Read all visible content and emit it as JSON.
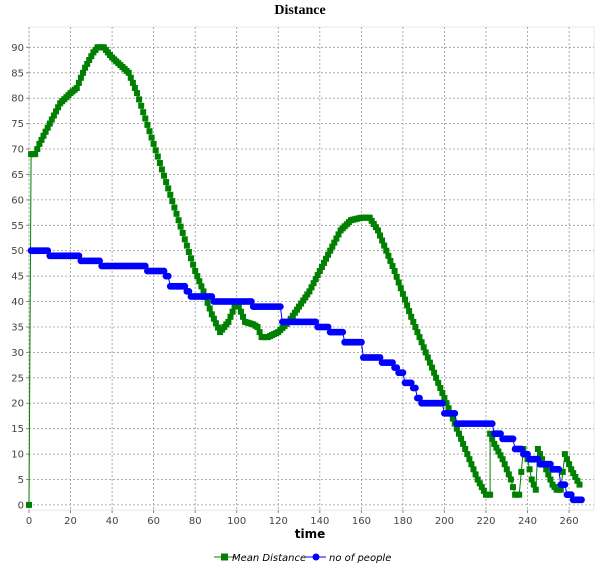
{
  "chart_data": {
    "type": "line",
    "title": "Distance",
    "xlabel": "time",
    "ylabel": "",
    "xlim": [
      0,
      272
    ],
    "ylim": [
      -1,
      94
    ],
    "xticks": [
      0,
      20,
      40,
      60,
      80,
      100,
      120,
      140,
      160,
      180,
      200,
      220,
      240,
      260
    ],
    "yticks": [
      0,
      5,
      10,
      15,
      20,
      25,
      30,
      35,
      40,
      45,
      50,
      55,
      60,
      65,
      70,
      75,
      80,
      85,
      90
    ],
    "grid": true,
    "legend_position": "bottom",
    "series": [
      {
        "name": "Mean Distance",
        "color": "#008000",
        "marker": "square",
        "segments": [
          [
            [
              0,
              0
            ],
            [
              1,
              69
            ],
            [
              3,
              69
            ],
            [
              5,
              71
            ],
            [
              10,
              75
            ],
            [
              15,
              79
            ],
            [
              20,
              81
            ],
            [
              23,
              82
            ],
            [
              27,
              86
            ],
            [
              31,
              89
            ],
            [
              33,
              90
            ],
            [
              36,
              90
            ],
            [
              40,
              88
            ],
            [
              44,
              86.5
            ],
            [
              48,
              85
            ],
            [
              52,
              81
            ],
            [
              56,
              76
            ],
            [
              60,
              71
            ],
            [
              64,
              66
            ],
            [
              68,
              61
            ],
            [
              72,
              56
            ],
            [
              76,
              51
            ],
            [
              80,
              46
            ],
            [
              84,
              42
            ],
            [
              88,
              37.5
            ],
            [
              92,
              34
            ],
            [
              96,
              36
            ],
            [
              100,
              40
            ],
            [
              104,
              36
            ],
            [
              108,
              35.5
            ],
            [
              110,
              35
            ],
            [
              112,
              33
            ],
            [
              115,
              33
            ],
            [
              120,
              34
            ],
            [
              125,
              36
            ],
            [
              130,
              39
            ],
            [
              135,
              42
            ],
            [
              140,
              46
            ],
            [
              145,
              50
            ],
            [
              150,
              54
            ],
            [
              155,
              56
            ],
            [
              160,
              56.5
            ],
            [
              164,
              56.5
            ],
            [
              168,
              54
            ],
            [
              172,
              50
            ],
            [
              176,
              46
            ],
            [
              180,
              41.5
            ],
            [
              184,
              37
            ],
            [
              188,
              33
            ],
            [
              192,
              29
            ],
            [
              196,
              25
            ],
            [
              200,
              21
            ],
            [
              204,
              17
            ],
            [
              208,
              13
            ],
            [
              212,
              9
            ],
            [
              216,
              5
            ],
            [
              220,
              2
            ],
            [
              222,
              2
            ],
            [
              222,
              14
            ],
            [
              224,
              12
            ],
            [
              228,
              9
            ],
            [
              232,
              5
            ],
            [
              234,
              2
            ],
            [
              236,
              2
            ],
            [
              238,
              11
            ],
            [
              240,
              9
            ],
            [
              242,
              5
            ],
            [
              244,
              3
            ],
            [
              245,
              11
            ],
            [
              248,
              8
            ],
            [
              252,
              4
            ],
            [
              254,
              3
            ],
            [
              256,
              3
            ],
            [
              258,
              10
            ],
            [
              261,
              7
            ],
            [
              265,
              4
            ]
          ]
        ]
      },
      {
        "name": "no of people",
        "color": "#0000ff",
        "marker": "circle",
        "steps": [
          [
            1,
            10,
            50
          ],
          [
            10,
            25,
            49
          ],
          [
            25,
            35,
            48
          ],
          [
            35,
            57,
            47
          ],
          [
            57,
            66,
            46
          ],
          [
            66,
            68,
            45
          ],
          [
            68,
            76,
            43
          ],
          [
            76,
            78,
            42
          ],
          [
            78,
            89,
            41
          ],
          [
            89,
            100,
            40
          ],
          [
            100,
            108,
            40
          ],
          [
            108,
            122,
            39
          ],
          [
            122,
            139,
            36
          ],
          [
            139,
            145,
            35
          ],
          [
            145,
            152,
            34
          ],
          [
            152,
            161,
            32
          ],
          [
            161,
            163,
            29
          ],
          [
            163,
            170,
            29
          ],
          [
            170,
            176,
            28
          ],
          [
            176,
            178,
            27
          ],
          [
            178,
            181,
            26
          ],
          [
            181,
            185,
            24
          ],
          [
            185,
            187,
            23
          ],
          [
            187,
            189,
            21
          ],
          [
            189,
            195,
            20
          ],
          [
            195,
            200,
            20
          ],
          [
            200,
            206,
            18
          ],
          [
            206,
            211,
            16
          ],
          [
            211,
            224,
            16
          ],
          [
            224,
            228,
            14
          ],
          [
            228,
            234,
            13
          ],
          [
            234,
            238,
            11
          ],
          [
            238,
            241,
            10
          ],
          [
            241,
            246,
            9
          ],
          [
            246,
            252,
            8
          ],
          [
            252,
            256,
            7
          ],
          [
            256,
            259,
            4
          ],
          [
            259,
            262,
            2
          ],
          [
            262,
            266,
            1
          ]
        ]
      }
    ]
  }
}
